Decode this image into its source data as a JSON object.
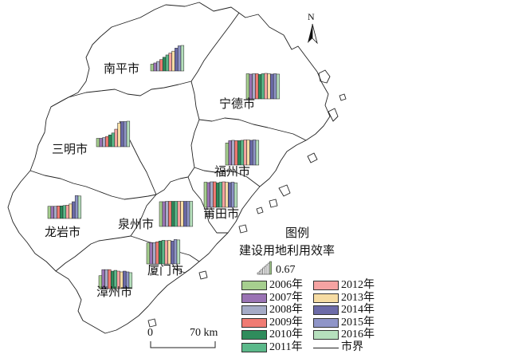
{
  "map": {
    "north_label": "N",
    "cities": [
      {
        "id": "nanping",
        "name": "南平市",
        "values": [
          0.18,
          0.21,
          0.25,
          0.3,
          0.36,
          0.42,
          0.47,
          0.52,
          0.6,
          0.66,
          0.67
        ]
      },
      {
        "id": "ningde",
        "name": "宁德市",
        "values": [
          0.66,
          0.65,
          0.66,
          0.66,
          0.64,
          0.66,
          0.67,
          0.66,
          0.65,
          0.66,
          0.65
        ]
      },
      {
        "id": "sanming",
        "name": "三明市",
        "values": [
          0.22,
          0.22,
          0.24,
          0.27,
          0.31,
          0.36,
          0.46,
          0.62,
          0.66,
          0.66,
          0.67
        ]
      },
      {
        "id": "fuzhou",
        "name": "福州市",
        "values": [
          0.58,
          0.64,
          0.65,
          0.64,
          0.64,
          0.65,
          0.66,
          0.66,
          0.65,
          0.66,
          0.65
        ]
      },
      {
        "id": "putian",
        "name": "莆田市",
        "values": [
          0.66,
          0.65,
          0.67,
          0.67,
          0.64,
          0.66,
          0.67,
          0.66,
          0.65,
          0.66,
          0.64
        ]
      },
      {
        "id": "longyan",
        "name": "龙岩市",
        "values": [
          0.32,
          0.32,
          0.32,
          0.33,
          0.33,
          0.34,
          0.35,
          0.38,
          0.44,
          0.6,
          0.59
        ]
      },
      {
        "id": "quanzhou",
        "name": "泉州市",
        "values": [
          0.65,
          0.65,
          0.66,
          0.66,
          0.66,
          0.66,
          0.66,
          0.66,
          0.66,
          0.66,
          0.66
        ]
      },
      {
        "id": "xiamen",
        "name": "厦门市",
        "values": [
          0.55,
          0.56,
          0.56,
          0.58,
          0.6,
          0.62,
          0.61,
          0.62,
          0.6,
          0.64,
          0.63
        ]
      },
      {
        "id": "zhangzhou",
        "name": "漳州市",
        "values": [
          0.34,
          0.5,
          0.5,
          0.5,
          0.46,
          0.48,
          0.46,
          0.44,
          0.46,
          0.44,
          0.42
        ]
      }
    ]
  },
  "legend": {
    "title": "图例",
    "subtitle": "建设用地利用效率",
    "scale_value": "0.67",
    "years": [
      {
        "label": "2006年",
        "color": "#a6cf8f"
      },
      {
        "label": "2007年",
        "color": "#9a73b4"
      },
      {
        "label": "2008年",
        "color": "#a5abc7"
      },
      {
        "label": "2009年",
        "color": "#f07b73"
      },
      {
        "label": "2010年",
        "color": "#2f8c5c"
      },
      {
        "label": "2011年",
        "color": "#5bb98a"
      },
      {
        "label": "2012年",
        "color": "#f5a3a2"
      },
      {
        "label": "2013年",
        "color": "#f6dca3"
      },
      {
        "label": "2014年",
        "color": "#6c6ba8"
      },
      {
        "label": "2015年",
        "color": "#8f95c8"
      },
      {
        "label": "2016年",
        "color": "#b6e0bd"
      }
    ],
    "boundary_label": "市界"
  },
  "scale_bar": {
    "zero": "0",
    "distance": "70 km"
  }
}
